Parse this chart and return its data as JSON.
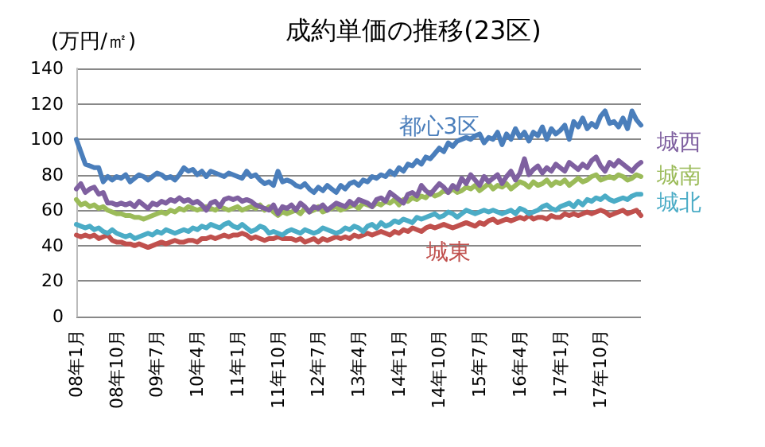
{
  "chart_data": {
    "type": "line",
    "title": "成約単価の推移(23区)",
    "ylabel": "(万円/㎡)",
    "categories": [
      "08年1月",
      null,
      null,
      null,
      null,
      null,
      null,
      null,
      null,
      "08年10月",
      null,
      null,
      null,
      null,
      null,
      null,
      null,
      null,
      "09年7月",
      null,
      null,
      null,
      null,
      null,
      null,
      null,
      null,
      "10年4月",
      null,
      null,
      null,
      null,
      null,
      null,
      null,
      null,
      "11年1月",
      null,
      null,
      null,
      null,
      null,
      null,
      null,
      null,
      "11年10月",
      null,
      null,
      null,
      null,
      null,
      null,
      null,
      null,
      "12年7月",
      null,
      null,
      null,
      null,
      null,
      null,
      null,
      null,
      "13年4月",
      null,
      null,
      null,
      null,
      null,
      null,
      null,
      null,
      "14年1月",
      null,
      null,
      null,
      null,
      null,
      null,
      null,
      null,
      "14年10月",
      null,
      null,
      null,
      null,
      null,
      null,
      null,
      null,
      "15年7月",
      null,
      null,
      null,
      null,
      null,
      null,
      null,
      null,
      "16年4月",
      null,
      null,
      null,
      null,
      null,
      null,
      null,
      null,
      "17年1月",
      null,
      null,
      null,
      null,
      null,
      null,
      null,
      null,
      "17年10月",
      null,
      null,
      null,
      null,
      null,
      null,
      null,
      null,
      null
    ],
    "series": [
      {
        "name": "都心3区",
        "color": "#4a7ebb",
        "values": [
          100,
          93,
          86,
          85,
          84,
          84,
          76,
          79,
          77,
          79,
          78,
          80,
          76,
          78,
          80,
          79,
          77,
          79,
          81,
          80,
          78,
          79,
          77,
          80,
          84,
          82,
          83,
          80,
          82,
          79,
          82,
          81,
          80,
          79,
          81,
          80,
          79,
          78,
          82,
          79,
          80,
          77,
          75,
          76,
          74,
          82,
          76,
          77,
          76,
          74,
          73,
          75,
          72,
          70,
          73,
          71,
          74,
          72,
          70,
          74,
          72,
          75,
          76,
          74,
          77,
          76,
          79,
          78,
          80,
          79,
          82,
          80,
          84,
          82,
          86,
          85,
          88,
          86,
          90,
          89,
          92,
          95,
          93,
          98,
          96,
          99,
          100,
          101,
          100,
          102,
          103,
          98,
          101,
          100,
          104,
          97,
          103,
          100,
          106,
          101,
          104,
          99,
          104,
          102,
          107,
          100,
          106,
          103,
          105,
          108,
          100,
          110,
          107,
          112,
          106,
          109,
          107,
          113,
          116,
          109,
          110,
          107,
          112,
          106,
          116,
          111,
          108
        ]
      },
      {
        "name": "城西",
        "color": "#7f60a0",
        "values": [
          72,
          75,
          70,
          72,
          73,
          69,
          70,
          64,
          64,
          63,
          64,
          63,
          64,
          62,
          65,
          63,
          61,
          64,
          63,
          65,
          64,
          66,
          65,
          67,
          65,
          66,
          64,
          65,
          63,
          60,
          64,
          65,
          62,
          66,
          67,
          66,
          67,
          65,
          66,
          65,
          63,
          62,
          61,
          60,
          63,
          58,
          62,
          61,
          63,
          60,
          64,
          62,
          59,
          62,
          61,
          63,
          60,
          62,
          64,
          63,
          62,
          65,
          63,
          66,
          65,
          64,
          62,
          66,
          67,
          65,
          70,
          68,
          66,
          64,
          69,
          70,
          68,
          74,
          71,
          69,
          72,
          75,
          73,
          70,
          74,
          72,
          78,
          75,
          80,
          77,
          74,
          79,
          76,
          78,
          80,
          75,
          79,
          82,
          77,
          81,
          89,
          80,
          83,
          85,
          81,
          84,
          82,
          86,
          84,
          82,
          87,
          85,
          83,
          86,
          84,
          88,
          90,
          85,
          82,
          87,
          85,
          88,
          86,
          84,
          82,
          85,
          87
        ]
      },
      {
        "name": "城南",
        "color": "#9bbb59",
        "values": [
          66,
          63,
          64,
          62,
          63,
          61,
          62,
          60,
          59,
          58,
          58,
          57,
          57,
          56,
          56,
          55,
          56,
          57,
          58,
          59,
          58,
          60,
          59,
          61,
          60,
          62,
          61,
          60,
          61,
          62,
          61,
          60,
          62,
          61,
          60,
          61,
          62,
          60,
          61,
          62,
          61,
          63,
          60,
          62,
          59,
          57,
          59,
          58,
          59,
          60,
          58,
          61,
          59,
          60,
          62,
          59,
          60,
          61,
          62,
          60,
          61,
          62,
          63,
          61,
          64,
          63,
          62,
          64,
          63,
          65,
          64,
          66,
          63,
          66,
          65,
          67,
          66,
          68,
          67,
          70,
          68,
          69,
          71,
          70,
          72,
          70,
          71,
          73,
          72,
          74,
          71,
          73,
          75,
          72,
          74,
          73,
          75,
          72,
          74,
          76,
          75,
          73,
          76,
          74,
          75,
          77,
          74,
          76,
          75,
          77,
          74,
          76,
          78,
          76,
          77,
          79,
          80,
          77,
          78,
          79,
          78,
          80,
          79,
          77,
          78,
          80,
          79
        ]
      },
      {
        "name": "城北",
        "color": "#4bacc6",
        "values": [
          52,
          51,
          50,
          51,
          49,
          50,
          48,
          47,
          49,
          47,
          46,
          45,
          46,
          44,
          45,
          46,
          47,
          46,
          48,
          47,
          49,
          48,
          47,
          48,
          49,
          48,
          50,
          49,
          51,
          50,
          52,
          51,
          50,
          52,
          53,
          51,
          50,
          52,
          50,
          48,
          49,
          51,
          50,
          47,
          48,
          47,
          46,
          48,
          49,
          48,
          47,
          49,
          48,
          47,
          48,
          50,
          49,
          48,
          47,
          48,
          50,
          49,
          51,
          50,
          48,
          51,
          52,
          50,
          53,
          51,
          52,
          54,
          53,
          55,
          54,
          53,
          56,
          55,
          56,
          57,
          58,
          56,
          57,
          59,
          58,
          56,
          58,
          60,
          59,
          58,
          59,
          60,
          59,
          60,
          59,
          58,
          59,
          60,
          58,
          61,
          60,
          58,
          59,
          60,
          62,
          63,
          61,
          60,
          62,
          63,
          64,
          62,
          65,
          63,
          66,
          65,
          67,
          66,
          68,
          66,
          65,
          66,
          67,
          66,
          68,
          69,
          69
        ]
      },
      {
        "name": "城東",
        "color": "#c0504d",
        "values": [
          46,
          45,
          46,
          45,
          46,
          44,
          45,
          46,
          43,
          42,
          42,
          41,
          41,
          40,
          41,
          40,
          39,
          40,
          41,
          42,
          41,
          42,
          43,
          42,
          42,
          43,
          43,
          42,
          44,
          44,
          45,
          44,
          45,
          46,
          45,
          46,
          46,
          47,
          46,
          44,
          45,
          44,
          43,
          44,
          44,
          45,
          44,
          44,
          44,
          43,
          44,
          42,
          43,
          44,
          42,
          44,
          43,
          44,
          45,
          44,
          45,
          44,
          46,
          45,
          46,
          47,
          46,
          47,
          48,
          47,
          46,
          48,
          47,
          49,
          48,
          50,
          49,
          48,
          50,
          51,
          50,
          51,
          52,
          51,
          50,
          51,
          52,
          53,
          52,
          51,
          53,
          52,
          54,
          55,
          53,
          54,
          55,
          54,
          55,
          56,
          55,
          57,
          55,
          56,
          56,
          55,
          57,
          56,
          56,
          58,
          57,
          58,
          57,
          58,
          59,
          58,
          59,
          60,
          59,
          57,
          58,
          59,
          60,
          58,
          59,
          60,
          57
        ]
      }
    ],
    "ylim": [
      0,
      140
    ],
    "yticks": [
      0,
      20,
      40,
      60,
      80,
      100,
      120,
      140
    ],
    "grid": "y",
    "legend": false,
    "marker": "none",
    "line_style": "solid"
  }
}
